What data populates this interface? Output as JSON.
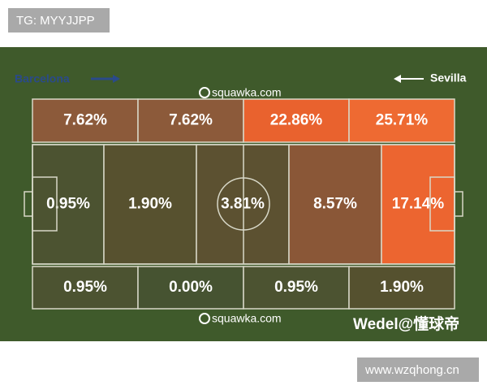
{
  "watermark_top": "TG: MYYJJPP",
  "teams": {
    "left": "Barcelona",
    "right": "Sevilla"
  },
  "source_top": "squawka.com",
  "source_bottom": "squawka.com",
  "credit": "Wedel@懂球帝",
  "watermark_bottom": "www.wzqhong.cn",
  "zones": {
    "top": [
      {
        "label": "7.62%",
        "color": "#8c5a3a"
      },
      {
        "label": "7.62%",
        "color": "#8c5a3a"
      },
      {
        "label": "22.86%",
        "color": "#e9622e"
      },
      {
        "label": "25.71%",
        "color": "#ee6a32"
      }
    ],
    "middle": [
      {
        "label": "0.95%",
        "color": "#4c5331"
      },
      {
        "label": "1.90%",
        "color": "#57512f"
      },
      {
        "label": "3.81%",
        "color": "#5c5131"
      },
      {
        "label": "8.57%",
        "color": "#8a5737"
      },
      {
        "label": "17.14%",
        "color": "#ec6530"
      }
    ],
    "bottom": [
      {
        "label": "0.95%",
        "color": "#4c5331"
      },
      {
        "label": "0.00%",
        "color": "#465331"
      },
      {
        "label": "0.95%",
        "color": "#4c5331"
      },
      {
        "label": "1.90%",
        "color": "#55512f"
      }
    ]
  }
}
